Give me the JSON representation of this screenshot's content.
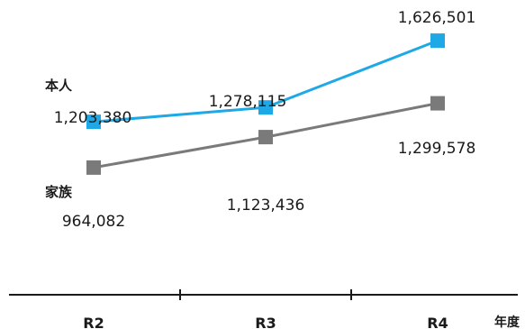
{
  "chart_data": {
    "type": "line",
    "categories": [
      "R2",
      "R3",
      "R4"
    ],
    "xlabel": "年度",
    "ylim": [
      0,
      1800000
    ],
    "grid": false,
    "series": [
      {
        "name": "本人",
        "values": [
          1203380,
          1278115,
          1626501
        ],
        "value_labels": [
          "1,203,380",
          "1,278,115",
          "1,626,501"
        ],
        "color": "#1ea8e6",
        "marker": "square"
      },
      {
        "name": "家族",
        "values": [
          964082,
          1123436,
          1299578
        ],
        "value_labels": [
          "964,082",
          "1,123,436",
          "1,299,578"
        ],
        "color": "#7a7a7a",
        "marker": "square"
      }
    ]
  }
}
